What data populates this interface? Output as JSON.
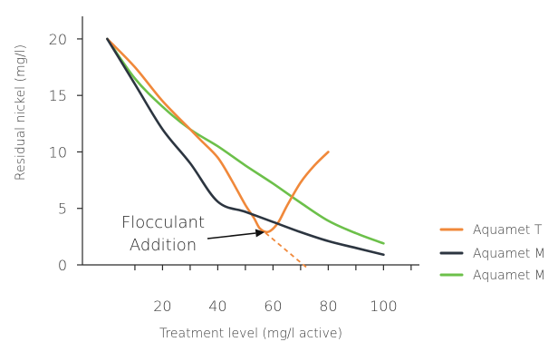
{
  "chart_data": {
    "type": "line",
    "title": "",
    "xlabel": "Treatment level (mg/l active)",
    "ylabel": "Residual nickel  (mg/l)",
    "xlim": [
      -9,
      113
    ],
    "ylim": [
      0,
      22
    ],
    "x_ticks": [
      20,
      40,
      60,
      80,
      100
    ],
    "x_minor_ticks": [
      10,
      30,
      50,
      70,
      90,
      110
    ],
    "y_ticks": [
      0,
      5,
      10,
      15,
      20
    ],
    "grid": false,
    "legend_position": "right",
    "series": [
      {
        "name": "Aquamet T",
        "color": "#f0883a",
        "x": [
          0,
          10,
          20,
          30,
          34,
          40,
          45,
          50,
          53,
          55,
          57,
          59,
          62,
          65,
          70,
          75,
          80
        ],
        "y": [
          20,
          17.5,
          14.5,
          12,
          11,
          9.5,
          7.5,
          5.3,
          4.2,
          3.3,
          2.95,
          3.0,
          3.8,
          5.2,
          7.3,
          8.8,
          10
        ]
      },
      {
        "name": "Aquamet M",
        "color": "#2c3540",
        "x": [
          0,
          10,
          20,
          30,
          40,
          50,
          60,
          70,
          80,
          90,
          100
        ],
        "y": [
          20,
          16,
          12,
          9,
          5.6,
          4.7,
          3.8,
          2.9,
          2.1,
          1.5,
          0.9
        ]
      },
      {
        "name": "Aquamet M",
        "color": "#6cc04a",
        "x": [
          0,
          10,
          20,
          30,
          40,
          50,
          60,
          70,
          80,
          90,
          100
        ],
        "y": [
          20,
          16.5,
          14,
          12,
          10.5,
          8.8,
          7.2,
          5.5,
          3.9,
          2.8,
          1.9
        ]
      }
    ],
    "dashed_extension": {
      "color": "#f0883a",
      "x": [
        55,
        72
      ],
      "y": [
        3.3,
        -0.2
      ]
    },
    "annotation": {
      "lines": [
        "Flocculant",
        "Addition"
      ],
      "arrow_target": {
        "x": 57,
        "y": 2.9
      }
    }
  }
}
